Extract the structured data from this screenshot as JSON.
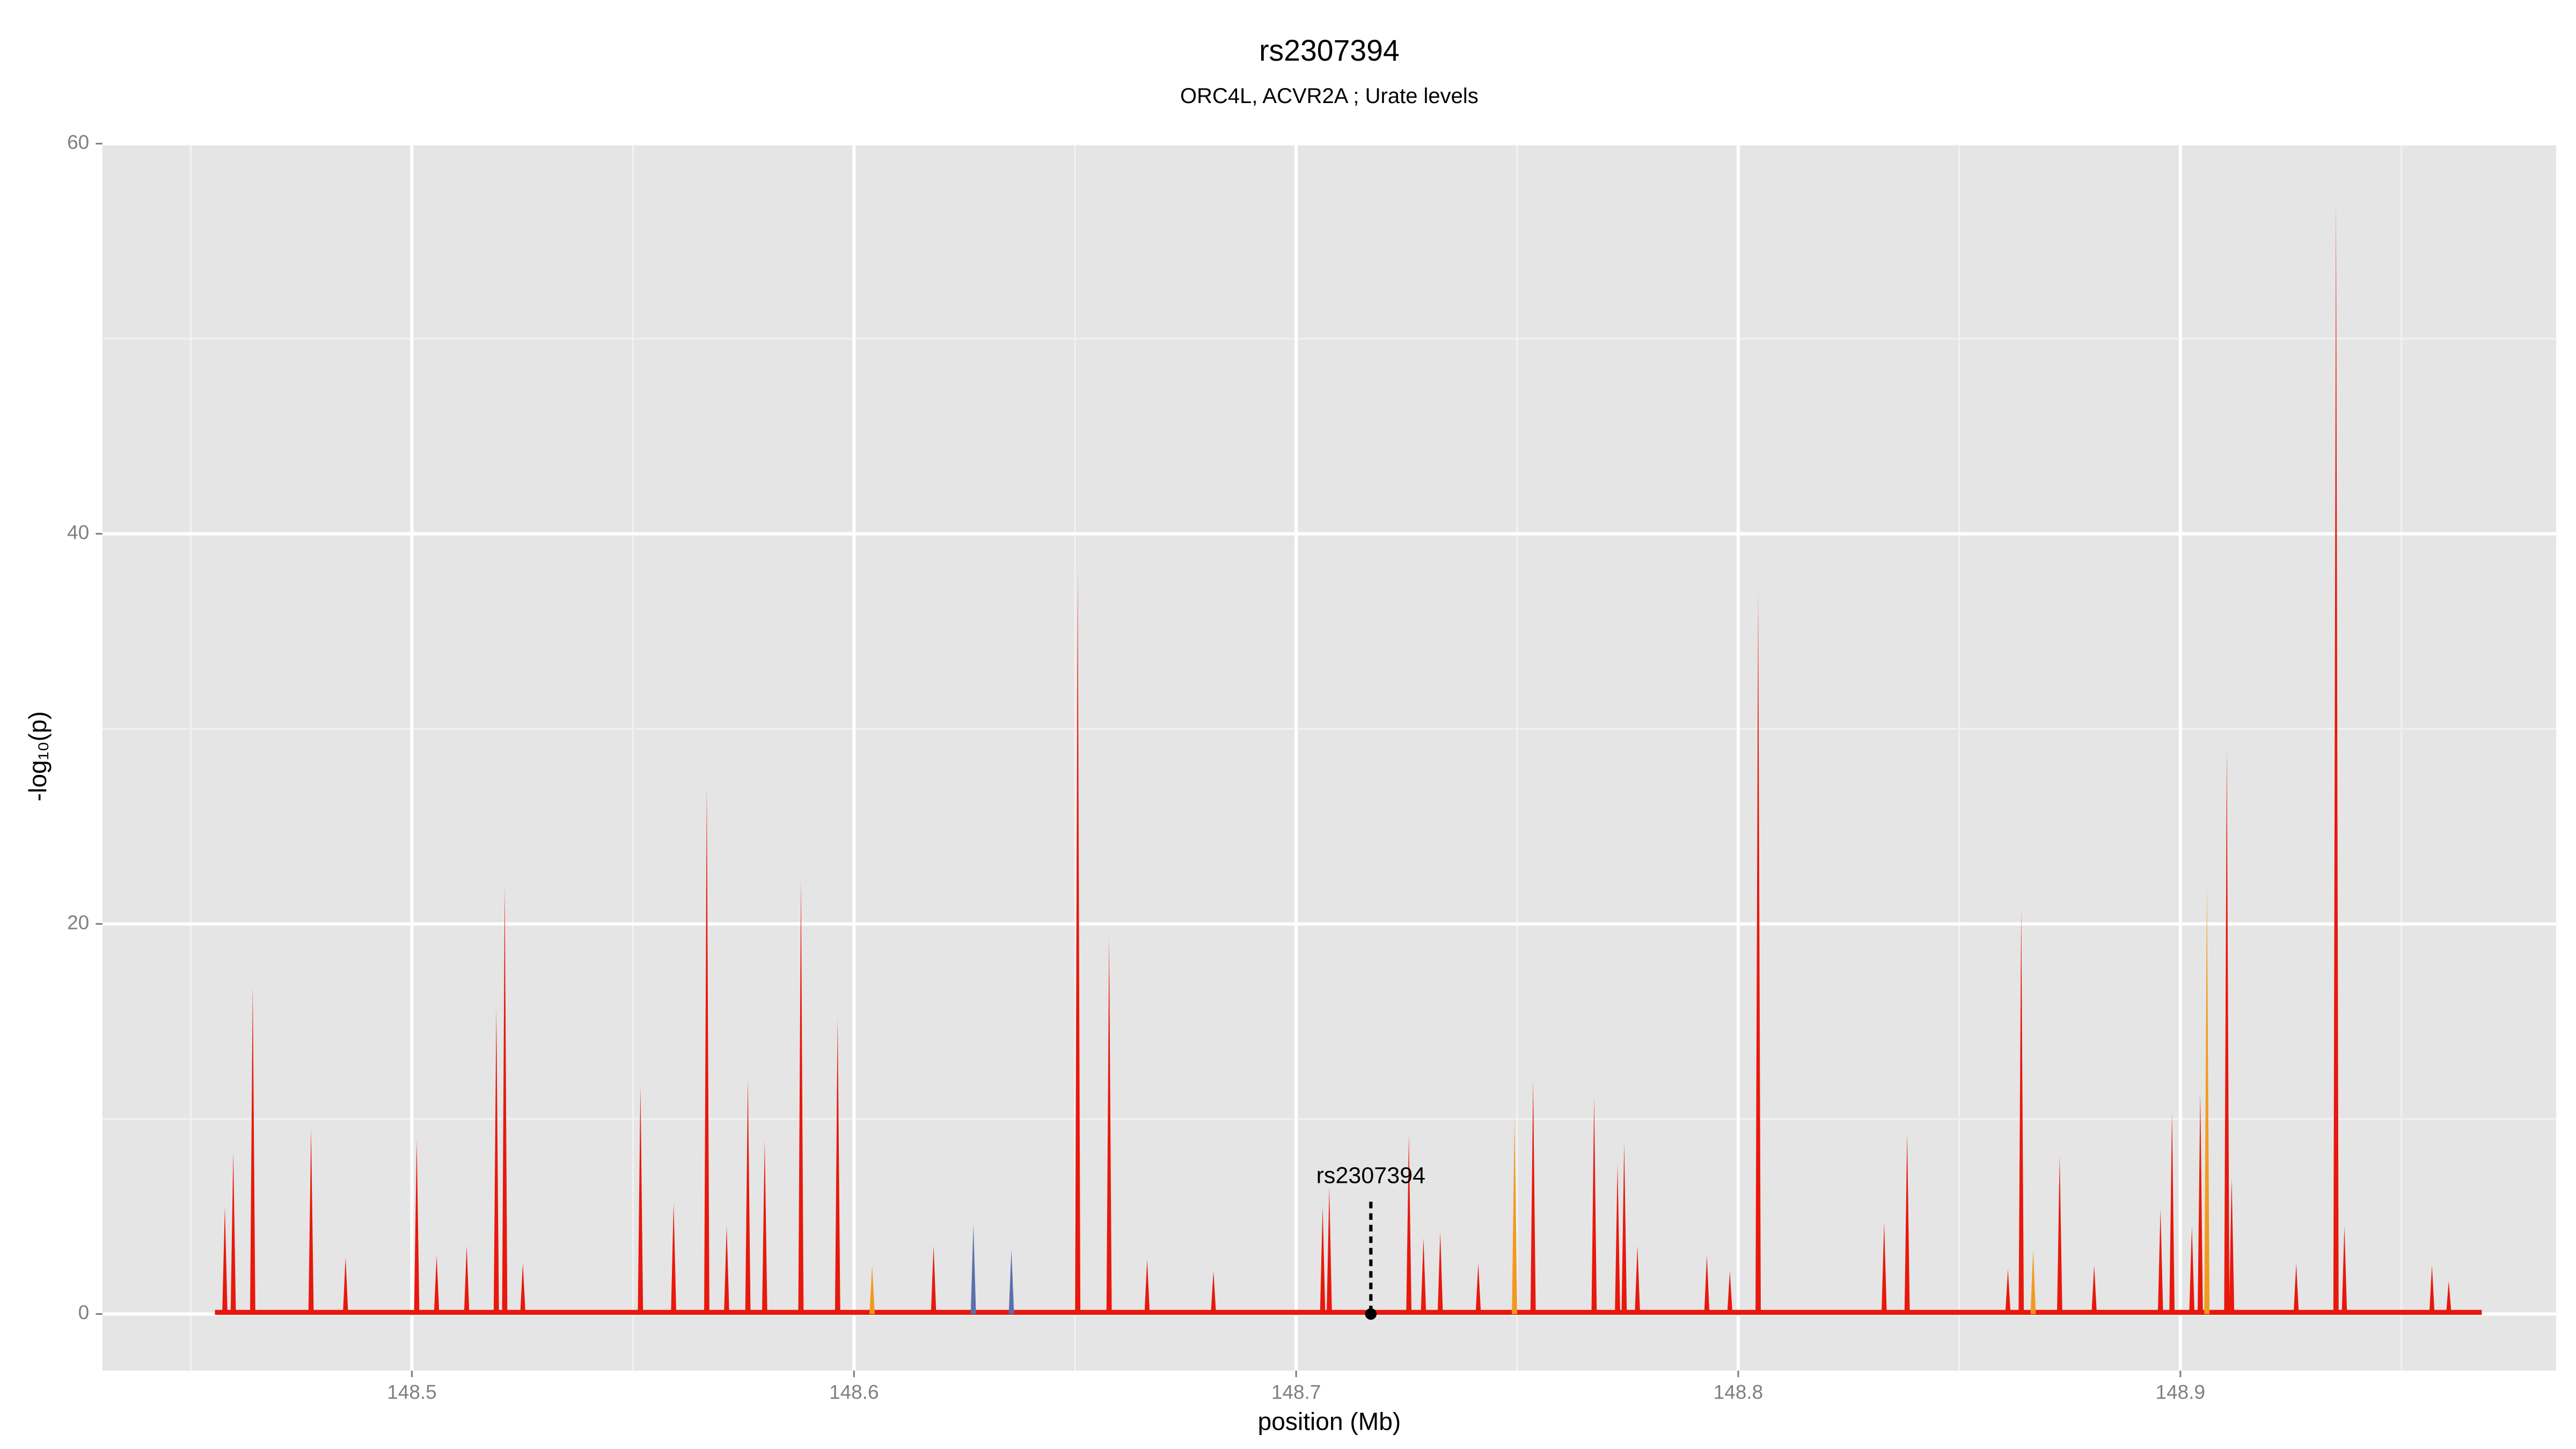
{
  "chart_data": {
    "type": "spike",
    "title": "rs2307394",
    "subtitle": "ORC4L, ACVR2A ; Urate levels",
    "xlabel": "position (Mb)",
    "ylabel": "-log₁₀(p)",
    "xlim": [
      148.43,
      148.985
    ],
    "ylim": [
      -2.9,
      60
    ],
    "xticks": [
      148.5,
      148.6,
      148.7,
      148.8,
      148.9
    ],
    "yticks": [
      0,
      20,
      40,
      60
    ],
    "x_minor_ticks": [
      148.45,
      148.55,
      148.65,
      148.75,
      148.85,
      148.95
    ],
    "y_minor_ticks": [
      10,
      30,
      50
    ],
    "grid": true,
    "series": [
      {
        "color": "#e8180c",
        "x": [
          148.4577,
          148.4596,
          148.464,
          148.4772,
          148.485,
          148.5011,
          148.5056,
          148.5124,
          148.5191,
          148.521,
          148.5251,
          148.5517,
          148.5592,
          148.5667,
          148.5712,
          148.576,
          148.5798,
          148.588,
          148.5963,
          148.618,
          148.6506,
          148.6577,
          148.6663,
          148.6813,
          148.706,
          148.7075,
          148.7255,
          148.7288,
          148.7326,
          148.7412,
          148.7536,
          148.7674,
          148.7727,
          148.7742,
          148.7772,
          148.7929,
          148.7981,
          148.8045,
          148.833,
          148.8382,
          148.861,
          148.864,
          148.8727,
          148.8805,
          148.8955,
          148.8981,
          148.9026,
          148.9045,
          148.9105,
          148.9116,
          148.9262,
          148.9352,
          148.9371,
          148.9569,
          148.9607
        ],
        "values": [
          5.5,
          8.3,
          16.8,
          9.5,
          2.9,
          8.9,
          3,
          3.5,
          15.7,
          22,
          2.6,
          11.7,
          5.7,
          27.1,
          4.5,
          12.1,
          8.9,
          22.3,
          15.2,
          3.5,
          38,
          19.3,
          2.8,
          2.2,
          5.5,
          6.5,
          9.2,
          3.9,
          4.2,
          2.6,
          12,
          11.1,
          7.7,
          8.8,
          3.5,
          3,
          2.2,
          37,
          4.7,
          9.3,
          2.3,
          20.8,
          8.1,
          2.5,
          5.4,
          10.4,
          4.5,
          11.4,
          29.1,
          7,
          2.6,
          57.2,
          4.5,
          2.5,
          1.7
        ]
      },
      {
        "color": "#f29a1f",
        "x": [
          148.6041,
          148.7494,
          148.8667,
          148.906
        ],
        "values": [
          2.5,
          10,
          3.3,
          22
        ]
      },
      {
        "color": "#5a6fb0",
        "x": [
          148.627,
          148.6356
        ],
        "values": [
          4.6,
          3.3
        ]
      }
    ],
    "annotation": {
      "text": "rs2307394",
      "x": 148.7169,
      "y": 0
    }
  }
}
